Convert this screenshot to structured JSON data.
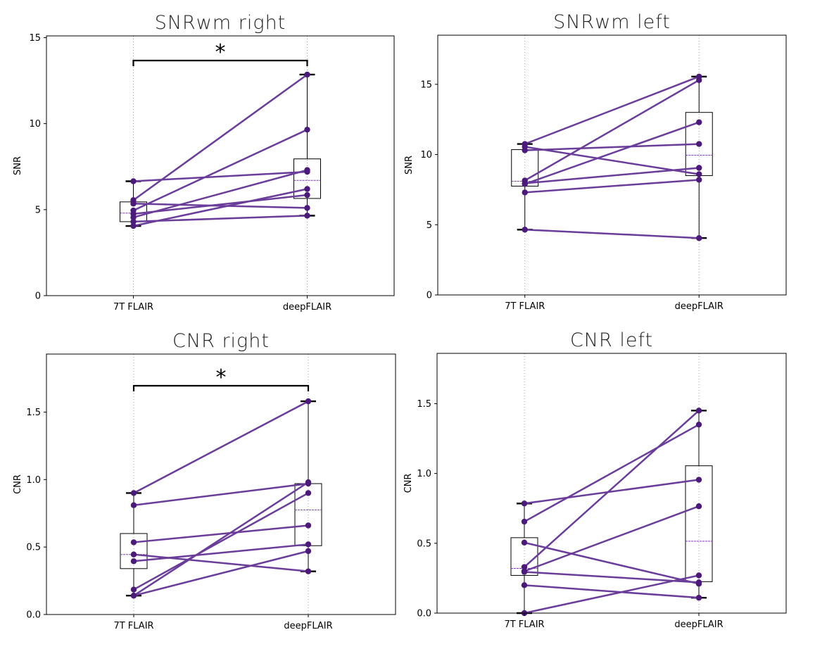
{
  "colors": {
    "line": "#6a3d9a",
    "point": "#4b1a7a",
    "median": "#7a3fb0",
    "whisker": "#000000",
    "grid": "#888888"
  },
  "chart_data": [
    {
      "type": "box-paired",
      "title": "SNRwm right",
      "ylabel": "SNR",
      "categories": [
        "7T FLAIR",
        "deepFLAIR"
      ],
      "ylim": [
        0,
        15.1
      ],
      "yticks": [
        0,
        5,
        10,
        15
      ],
      "ytick_labels": [
        "0",
        "5",
        "10",
        "15"
      ],
      "pairs": [
        [
          6.65,
          7.2
        ],
        [
          5.55,
          12.85
        ],
        [
          5.35,
          5.1
        ],
        [
          4.95,
          9.65
        ],
        [
          4.75,
          5.85
        ],
        [
          4.55,
          7.3
        ],
        [
          4.3,
          4.65
        ],
        [
          4.05,
          6.2
        ]
      ],
      "box": [
        {
          "q1": 4.3,
          "median": 4.8,
          "q3": 5.45,
          "whisker_low": 4.05,
          "whisker_high": 6.65
        },
        {
          "q1": 5.65,
          "median": 6.7,
          "q3": 7.95,
          "whisker_low": 4.65,
          "whisker_high": 12.85
        }
      ],
      "significance": "*"
    },
    {
      "type": "box-paired",
      "title": "SNRwm  left",
      "ylabel": "SNR",
      "categories": [
        "7T FLAIR",
        "deepFLAIR"
      ],
      "ylim": [
        0,
        18.5
      ],
      "yticks": [
        0,
        5,
        10,
        15
      ],
      "ytick_labels": [
        "0",
        "5",
        "10",
        "15"
      ],
      "pairs": [
        [
          10.75,
          15.55
        ],
        [
          10.55,
          8.6
        ],
        [
          10.3,
          10.75
        ],
        [
          8.15,
          15.3
        ],
        [
          7.95,
          9.05
        ],
        [
          7.9,
          12.3
        ],
        [
          7.3,
          8.2
        ],
        [
          4.65,
          4.05
        ]
      ],
      "box": [
        {
          "q1": 7.75,
          "median": 8.1,
          "q3": 10.35,
          "whisker_low": 4.65,
          "whisker_high": 10.75
        },
        {
          "q1": 8.5,
          "median": 9.95,
          "q3": 13.0,
          "whisker_low": 4.05,
          "whisker_high": 15.55
        }
      ],
      "significance": ""
    },
    {
      "type": "box-paired",
      "title": "CNR right",
      "ylabel": "CNR",
      "categories": [
        "7T FLAIR",
        "deepFLAIR"
      ],
      "ylim": [
        0,
        1.93
      ],
      "yticks": [
        0.0,
        0.5,
        1.0,
        1.5
      ],
      "ytick_labels": [
        "0.0",
        "0.5",
        "1.0",
        "1.5"
      ],
      "pairs": [
        [
          0.9,
          1.58
        ],
        [
          0.81,
          0.97
        ],
        [
          0.535,
          0.66
        ],
        [
          0.445,
          0.32
        ],
        [
          0.395,
          0.52
        ],
        [
          0.185,
          0.9
        ],
        [
          0.14,
          0.47
        ],
        [
          0.14,
          0.98
        ]
      ],
      "box": [
        {
          "q1": 0.34,
          "median": 0.445,
          "q3": 0.6,
          "whisker_low": 0.14,
          "whisker_high": 0.9
        },
        {
          "q1": 0.51,
          "median": 0.775,
          "q3": 0.97,
          "whisker_low": 0.32,
          "whisker_high": 1.58
        }
      ],
      "significance": "*"
    },
    {
      "type": "box-paired",
      "title": "CNR  left",
      "ylabel": "CNR",
      "categories": [
        "7T FLAIR",
        "deepFLAIR"
      ],
      "ylim": [
        0,
        1.86
      ],
      "yticks": [
        0.0,
        0.5,
        1.0,
        1.5
      ],
      "ytick_labels": [
        "0.0",
        "0.5",
        "1.0",
        "1.5"
      ],
      "pairs": [
        [
          0.785,
          0.955
        ],
        [
          0.655,
          1.35
        ],
        [
          0.505,
          0.21
        ],
        [
          0.33,
          1.45
        ],
        [
          0.3,
          0.765
        ],
        [
          0.295,
          0.22
        ],
        [
          0.2,
          0.11
        ],
        [
          0.0,
          0.27
        ]
      ],
      "box": [
        {
          "q1": 0.27,
          "median": 0.32,
          "q3": 0.54,
          "whisker_low": 0.0,
          "whisker_high": 0.785
        },
        {
          "q1": 0.225,
          "median": 0.515,
          "q3": 1.055,
          "whisker_low": 0.11,
          "whisker_high": 1.45
        }
      ],
      "significance": ""
    }
  ]
}
